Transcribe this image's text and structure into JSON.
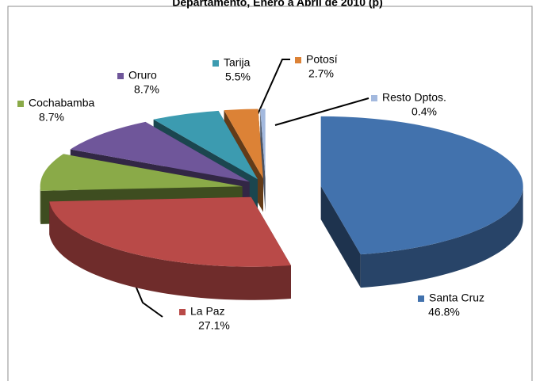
{
  "chart_data": {
    "type": "pie",
    "title": "Departamento, Enero a Abril de 2010 (p)",
    "categories": [
      "Santa Cruz",
      "La Paz",
      "Cochabamba",
      "Oruro",
      "Tarija",
      "Potosí",
      "Resto Dptos."
    ],
    "values": [
      46.8,
      27.1,
      8.7,
      8.7,
      5.5,
      2.7,
      0.4
    ],
    "value_labels": [
      "46.8%",
      "27.1%",
      "8.7%",
      "8.7%",
      "5.5%",
      "2.7%",
      "0.4%"
    ],
    "colors": [
      "#4272ad",
      "#b94a48",
      "#8aaa48",
      "#6f569a",
      "#3c9bb0",
      "#dc8236",
      "#a3b9de"
    ]
  }
}
